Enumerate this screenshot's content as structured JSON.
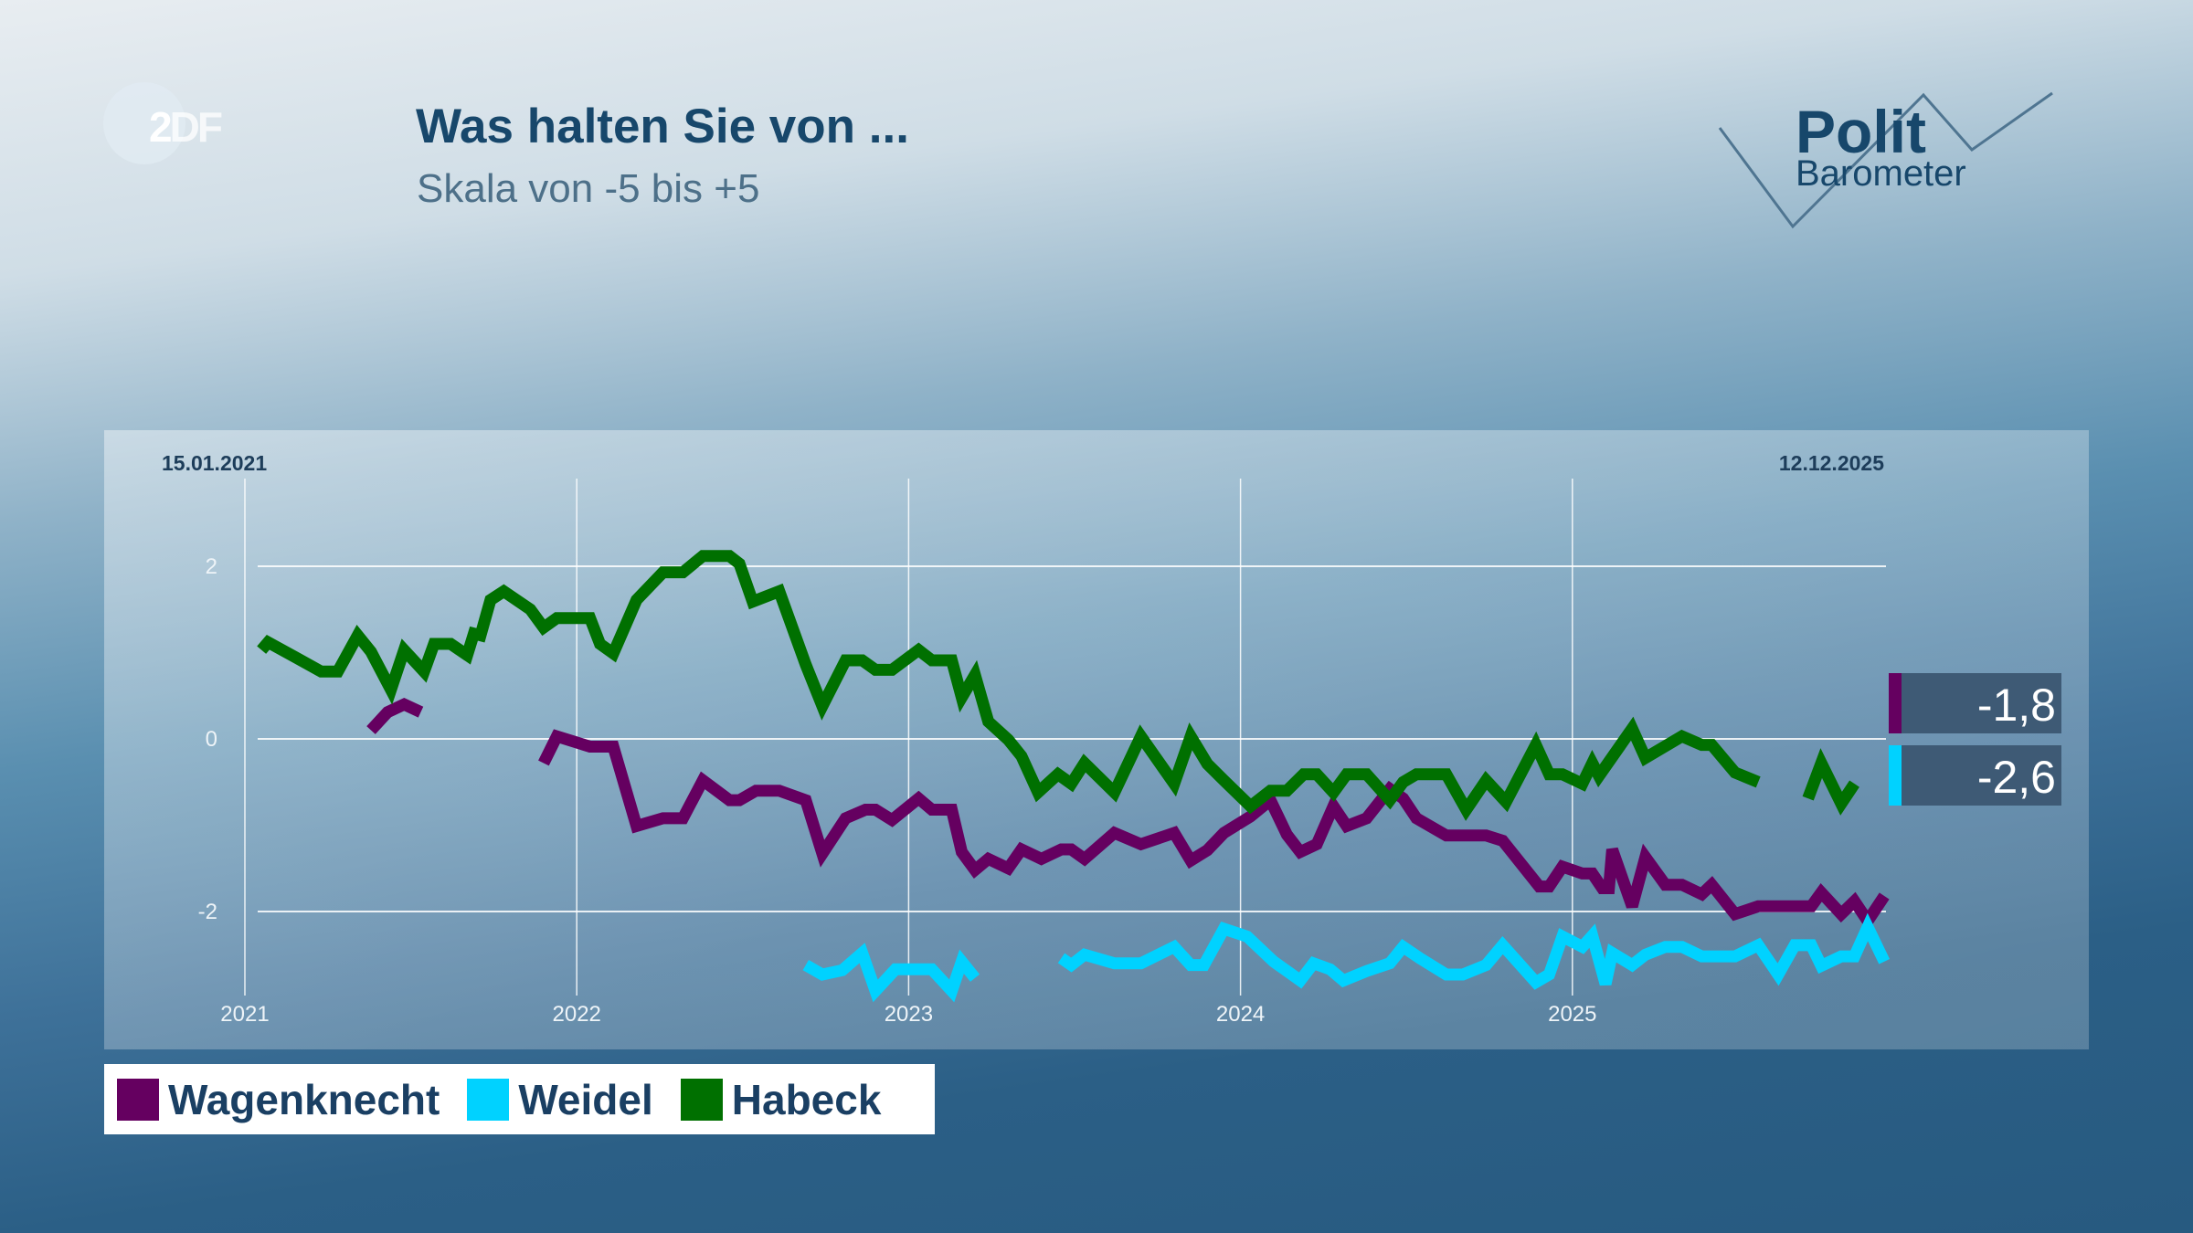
{
  "logo": {
    "text": "ZDF"
  },
  "header": {
    "title": "Was halten Sie von ...",
    "subtitle": "Skala von -5 bis +5"
  },
  "brand": {
    "line1": "Polit",
    "line2": "Barometer"
  },
  "dates": {
    "start": "15.01.2021",
    "end": "12.12.2025"
  },
  "end_labels": [
    {
      "series": "Wagenknecht",
      "value": "-1,8",
      "color": "#650060"
    },
    {
      "series": "Weidel",
      "value": "-2,6",
      "color": "#00d2ff"
    }
  ],
  "legend": [
    {
      "label": "Wagenknecht",
      "color": "#650060"
    },
    {
      "label": "Weidel",
      "color": "#00d2ff"
    },
    {
      "label": "Habeck",
      "color": "#007000"
    }
  ],
  "chart_data": {
    "type": "line",
    "title": "Was halten Sie von ...",
    "subtitle": "Skala von -5 bis +5",
    "xlabel": "",
    "ylabel": "",
    "xlim": [
      2021.04,
      2025.95
    ],
    "ylim": [
      -3,
      2.5
    ],
    "x_ticks": [
      "2021",
      "2022",
      "2023",
      "2024",
      "2025"
    ],
    "y_ticks": [
      "2",
      "0",
      "-2"
    ],
    "grid": true,
    "legend_position": "bottom-left",
    "series": [
      {
        "name": "Wagenknecht",
        "color": "#650060",
        "points": [
          [
            2021.38,
            0.1
          ],
          [
            2021.43,
            0.31
          ],
          [
            2021.48,
            0.4
          ],
          [
            2021.53,
            0.31
          ],
          null,
          [
            2021.9,
            -0.28
          ],
          [
            2021.94,
            0.03
          ],
          [
            2022.04,
            -0.09
          ],
          [
            2022.11,
            -0.09
          ],
          [
            2022.18,
            -1.01
          ],
          [
            2022.26,
            -0.92
          ],
          [
            2022.32,
            -0.92
          ],
          [
            2022.38,
            -0.48
          ],
          [
            2022.46,
            -0.71
          ],
          [
            2022.49,
            -0.71
          ],
          [
            2022.54,
            -0.6
          ],
          [
            2022.61,
            -0.6
          ],
          [
            2022.69,
            -0.71
          ],
          [
            2022.74,
            -1.33
          ],
          [
            2022.81,
            -0.92
          ],
          [
            2022.87,
            -0.82
          ],
          [
            2022.9,
            -0.82
          ],
          [
            2022.95,
            -0.94
          ],
          [
            2023.03,
            -0.69
          ],
          [
            2023.07,
            -0.82
          ],
          [
            2023.13,
            -0.82
          ],
          [
            2023.16,
            -1.31
          ],
          [
            2023.2,
            -1.52
          ],
          [
            2023.24,
            -1.39
          ],
          [
            2023.3,
            -1.5
          ],
          [
            2023.34,
            -1.28
          ],
          [
            2023.4,
            -1.39
          ],
          [
            2023.46,
            -1.28
          ],
          [
            2023.49,
            -1.28
          ],
          [
            2023.53,
            -1.39
          ],
          [
            2023.62,
            -1.09
          ],
          [
            2023.7,
            -1.22
          ],
          [
            2023.8,
            -1.09
          ],
          [
            2023.85,
            -1.41
          ],
          [
            2023.9,
            -1.29
          ],
          [
            2023.95,
            -1.09
          ],
          [
            2024.03,
            -0.9
          ],
          [
            2024.09,
            -0.71
          ],
          [
            2024.14,
            -1.11
          ],
          [
            2024.18,
            -1.31
          ],
          [
            2024.23,
            -1.22
          ],
          [
            2024.28,
            -0.78
          ],
          [
            2024.32,
            -1.01
          ],
          [
            2024.38,
            -0.92
          ],
          [
            2024.45,
            -0.58
          ],
          [
            2024.49,
            -0.69
          ],
          [
            2024.53,
            -0.92
          ],
          [
            2024.62,
            -1.12
          ],
          [
            2024.74,
            -1.12
          ],
          [
            2024.79,
            -1.18
          ],
          [
            2024.9,
            -1.71
          ],
          [
            2024.93,
            -1.71
          ],
          [
            2024.97,
            -1.48
          ],
          [
            2025.03,
            -1.56
          ],
          [
            2025.06,
            -1.56
          ],
          [
            2025.09,
            -1.73
          ],
          [
            2025.11,
            -1.73
          ],
          [
            2025.12,
            -1.28
          ],
          [
            2025.18,
            -1.94
          ],
          [
            2025.22,
            -1.37
          ],
          [
            2025.28,
            -1.69
          ],
          [
            2025.33,
            -1.69
          ],
          [
            2025.39,
            -1.8
          ],
          [
            2025.42,
            -1.69
          ],
          [
            2025.49,
            -2.03
          ],
          [
            2025.56,
            -1.94
          ],
          [
            2025.72,
            -1.94
          ],
          [
            2025.75,
            -1.78
          ],
          [
            2025.81,
            -2.03
          ],
          [
            2025.85,
            -1.88
          ],
          [
            2025.89,
            -2.11
          ],
          [
            2025.94,
            -1.82
          ]
        ]
      },
      {
        "name": "Weidel",
        "color": "#00d2ff",
        "points": [
          [
            2022.69,
            -2.62
          ],
          [
            2022.74,
            -2.73
          ],
          [
            2022.8,
            -2.68
          ],
          [
            2022.86,
            -2.48
          ],
          [
            2022.9,
            -2.92
          ],
          [
            2022.96,
            -2.67
          ],
          [
            2023.07,
            -2.67
          ],
          [
            2023.13,
            -2.92
          ],
          [
            2023.16,
            -2.58
          ],
          [
            2023.2,
            -2.77
          ],
          null,
          [
            2023.46,
            -2.54
          ],
          [
            2023.49,
            -2.62
          ],
          [
            2023.53,
            -2.5
          ],
          [
            2023.62,
            -2.6
          ],
          [
            2023.7,
            -2.6
          ],
          [
            2023.8,
            -2.41
          ],
          [
            2023.85,
            -2.62
          ],
          [
            2023.89,
            -2.62
          ],
          [
            2023.95,
            -2.2
          ],
          [
            2024.02,
            -2.29
          ],
          [
            2024.1,
            -2.58
          ],
          [
            2024.18,
            -2.8
          ],
          [
            2024.22,
            -2.6
          ],
          [
            2024.27,
            -2.67
          ],
          [
            2024.31,
            -2.8
          ],
          [
            2024.38,
            -2.69
          ],
          [
            2024.45,
            -2.6
          ],
          [
            2024.49,
            -2.41
          ],
          [
            2024.54,
            -2.54
          ],
          [
            2024.62,
            -2.73
          ],
          [
            2024.67,
            -2.73
          ],
          [
            2024.74,
            -2.62
          ],
          [
            2024.79,
            -2.39
          ],
          [
            2024.89,
            -2.82
          ],
          [
            2024.93,
            -2.73
          ],
          [
            2024.97,
            -2.29
          ],
          [
            2025.03,
            -2.41
          ],
          [
            2025.06,
            -2.28
          ],
          [
            2025.1,
            -2.84
          ],
          [
            2025.12,
            -2.48
          ],
          [
            2025.18,
            -2.62
          ],
          [
            2025.22,
            -2.5
          ],
          [
            2025.28,
            -2.41
          ],
          [
            2025.33,
            -2.41
          ],
          [
            2025.39,
            -2.52
          ],
          [
            2025.49,
            -2.52
          ],
          [
            2025.56,
            -2.39
          ],
          [
            2025.62,
            -2.73
          ],
          [
            2025.67,
            -2.39
          ],
          [
            2025.72,
            -2.39
          ],
          [
            2025.75,
            -2.63
          ],
          [
            2025.81,
            -2.52
          ],
          [
            2025.85,
            -2.52
          ],
          [
            2025.89,
            -2.18
          ],
          [
            2025.94,
            -2.58
          ]
        ]
      },
      {
        "name": "Habeck",
        "color": "#007000",
        "points": [
          [
            2021.05,
            1.03
          ],
          [
            2021.07,
            1.12
          ],
          [
            2021.15,
            0.95
          ],
          [
            2021.23,
            0.78
          ],
          [
            2021.28,
            0.78
          ],
          [
            2021.34,
            1.2
          ],
          [
            2021.38,
            1.01
          ],
          [
            2021.44,
            0.57
          ],
          [
            2021.48,
            1.03
          ],
          [
            2021.54,
            0.78
          ],
          [
            2021.57,
            1.1
          ],
          [
            2021.62,
            1.1
          ],
          [
            2021.67,
            0.97
          ],
          [
            2021.69,
            1.22
          ],
          [
            2021.71,
            1.2
          ],
          [
            2021.74,
            1.61
          ],
          [
            2021.78,
            1.71
          ],
          [
            2021.86,
            1.5
          ],
          [
            2021.9,
            1.29
          ],
          [
            2021.94,
            1.4
          ],
          [
            2022.04,
            1.4
          ],
          [
            2022.07,
            1.1
          ],
          [
            2022.11,
            0.99
          ],
          [
            2022.18,
            1.61
          ],
          [
            2022.26,
            1.93
          ],
          [
            2022.32,
            1.93
          ],
          [
            2022.38,
            2.12
          ],
          [
            2022.46,
            2.12
          ],
          [
            2022.49,
            2.03
          ],
          [
            2022.53,
            1.59
          ],
          [
            2022.61,
            1.71
          ],
          [
            2022.69,
            0.86
          ],
          [
            2022.74,
            0.38
          ],
          [
            2022.81,
            0.91
          ],
          [
            2022.86,
            0.91
          ],
          [
            2022.9,
            0.8
          ],
          [
            2022.95,
            0.8
          ],
          [
            2023.03,
            1.03
          ],
          [
            2023.07,
            0.91
          ],
          [
            2023.13,
            0.91
          ],
          [
            2023.16,
            0.48
          ],
          [
            2023.2,
            0.74
          ],
          [
            2023.24,
            0.2
          ],
          [
            2023.3,
            -0.01
          ],
          [
            2023.34,
            -0.2
          ],
          [
            2023.39,
            -0.62
          ],
          [
            2023.45,
            -0.41
          ],
          [
            2023.49,
            -0.52
          ],
          [
            2023.53,
            -0.28
          ],
          [
            2023.62,
            -0.62
          ],
          [
            2023.7,
            0.03
          ],
          [
            2023.8,
            -0.52
          ],
          [
            2023.85,
            0.03
          ],
          [
            2023.9,
            -0.29
          ],
          [
            2023.95,
            -0.48
          ],
          [
            2024.03,
            -0.78
          ],
          [
            2024.09,
            -0.6
          ],
          [
            2024.14,
            -0.6
          ],
          [
            2024.19,
            -0.41
          ],
          [
            2024.23,
            -0.41
          ],
          [
            2024.28,
            -0.62
          ],
          [
            2024.32,
            -0.41
          ],
          [
            2024.38,
            -0.41
          ],
          [
            2024.45,
            -0.71
          ],
          [
            2024.49,
            -0.5
          ],
          [
            2024.53,
            -0.41
          ],
          [
            2024.62,
            -0.41
          ],
          [
            2024.68,
            -0.82
          ],
          [
            2024.74,
            -0.48
          ],
          [
            2024.8,
            -0.73
          ],
          [
            2024.89,
            -0.07
          ],
          [
            2024.93,
            -0.41
          ],
          [
            2024.97,
            -0.41
          ],
          [
            2025.03,
            -0.52
          ],
          [
            2025.06,
            -0.28
          ],
          [
            2025.08,
            -0.43
          ],
          [
            2025.18,
            0.12
          ],
          [
            2025.22,
            -0.22
          ],
          [
            2025.33,
            0.03
          ],
          [
            2025.39,
            -0.07
          ],
          [
            2025.42,
            -0.07
          ],
          [
            2025.49,
            -0.39
          ],
          [
            2025.56,
            -0.5
          ],
          null,
          [
            2025.71,
            -0.69
          ],
          [
            2025.75,
            -0.28
          ],
          [
            2025.81,
            -0.75
          ],
          [
            2025.85,
            -0.52
          ]
        ]
      }
    ]
  }
}
